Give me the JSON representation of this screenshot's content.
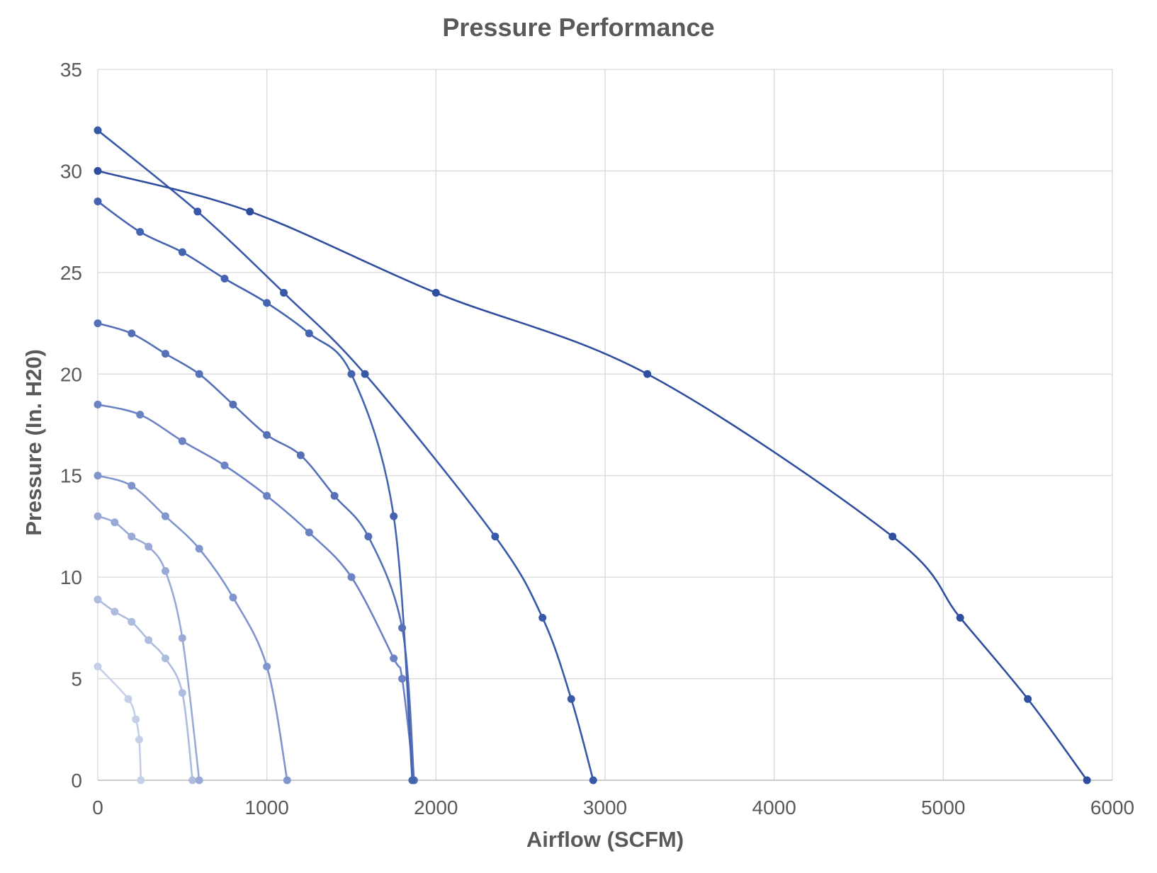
{
  "chart_data": {
    "type": "line",
    "title": "Pressure Performance",
    "xlabel": "Airflow (SCFM)",
    "ylabel": "Pressure (In. H20)",
    "xlim": [
      0,
      6000
    ],
    "ylim": [
      0,
      35
    ],
    "xticks": [
      0,
      1000,
      2000,
      3000,
      4000,
      5000,
      6000
    ],
    "yticks": [
      0,
      5,
      10,
      15,
      20,
      25,
      30,
      35
    ],
    "grid": true,
    "legend": "none",
    "smooth": true,
    "series": [
      {
        "color": "#c5d0e8",
        "points": [
          [
            0,
            5.6
          ],
          [
            180,
            4.0
          ],
          [
            225,
            3.0
          ],
          [
            245,
            2.0
          ],
          [
            255,
            0
          ]
        ]
      },
      {
        "color": "#aebcdf",
        "points": [
          [
            0,
            8.9
          ],
          [
            100,
            8.3
          ],
          [
            200,
            7.8
          ],
          [
            300,
            6.9
          ],
          [
            400,
            6.0
          ],
          [
            500,
            4.3
          ],
          [
            560,
            0
          ]
        ]
      },
      {
        "color": "#9aaad6",
        "points": [
          [
            0,
            13.0
          ],
          [
            100,
            12.7
          ],
          [
            200,
            12.0
          ],
          [
            300,
            11.5
          ],
          [
            400,
            10.3
          ],
          [
            500,
            7.0
          ],
          [
            600,
            0
          ]
        ]
      },
      {
        "color": "#8095cc",
        "points": [
          [
            0,
            15.0
          ],
          [
            200,
            14.5
          ],
          [
            400,
            13.0
          ],
          [
            600,
            11.4
          ],
          [
            800,
            9.0
          ],
          [
            1000,
            5.6
          ],
          [
            1120,
            0
          ]
        ]
      },
      {
        "color": "#6b83c4",
        "points": [
          [
            0,
            18.5
          ],
          [
            250,
            18.0
          ],
          [
            500,
            16.7
          ],
          [
            750,
            15.5
          ],
          [
            1000,
            14.0
          ],
          [
            1250,
            12.2
          ],
          [
            1500,
            10.0
          ],
          [
            1750,
            6.0
          ],
          [
            1800,
            5.0
          ],
          [
            1870,
            0
          ]
        ]
      },
      {
        "color": "#5570b6",
        "points": [
          [
            0,
            22.5
          ],
          [
            200,
            22.0
          ],
          [
            400,
            21.0
          ],
          [
            600,
            20.0
          ],
          [
            800,
            18.5
          ],
          [
            1000,
            17.0
          ],
          [
            1200,
            16.0
          ],
          [
            1400,
            14.0
          ],
          [
            1600,
            12.0
          ],
          [
            1800,
            7.5
          ],
          [
            1870,
            0
          ]
        ]
      },
      {
        "color": "#4463b0",
        "points": [
          [
            0,
            28.5
          ],
          [
            250,
            27.0
          ],
          [
            500,
            26.0
          ],
          [
            750,
            24.7
          ],
          [
            1000,
            23.5
          ],
          [
            1250,
            22.0
          ],
          [
            1500,
            20.0
          ],
          [
            1750,
            13.0
          ],
          [
            1860,
            0
          ]
        ]
      },
      {
        "color": "#3858a8",
        "points": [
          [
            0,
            32.0
          ],
          [
            590,
            28.0
          ],
          [
            1100,
            24.0
          ],
          [
            1580,
            20.0
          ],
          [
            2350,
            12.0
          ],
          [
            2630,
            8.0
          ],
          [
            2800,
            4.0
          ],
          [
            2930,
            0
          ]
        ]
      },
      {
        "color": "#2f4f9e",
        "points": [
          [
            0,
            30.0
          ],
          [
            900,
            28.0
          ],
          [
            2000,
            24.0
          ],
          [
            3250,
            20.0
          ],
          [
            4700,
            12.0
          ],
          [
            5100,
            8.0
          ],
          [
            5500,
            4.0
          ],
          [
            5850,
            0
          ]
        ]
      }
    ]
  }
}
